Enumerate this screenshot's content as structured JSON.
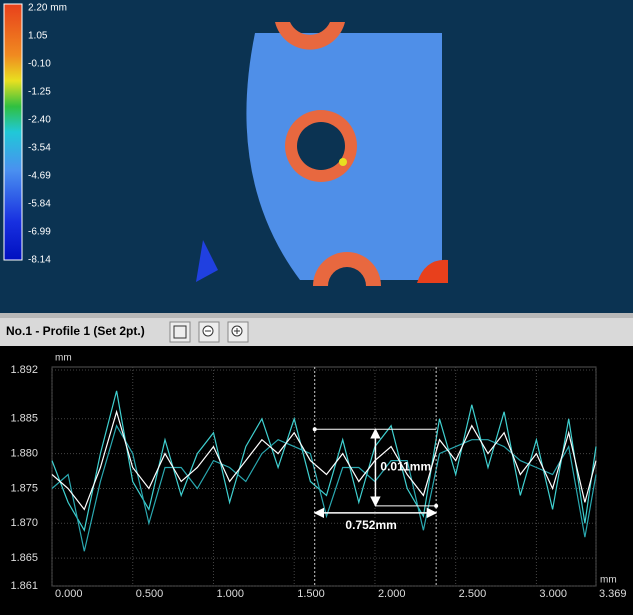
{
  "colorbar": {
    "labels": [
      "2.20 mm",
      "1.05",
      "-0.10",
      "-1.25",
      "-2.40",
      "-3.54",
      "-4.69",
      "-5.84",
      "-6.99",
      "-8.14"
    ]
  },
  "panel": {
    "title": "No.1 - Profile 1 (Set 2pt.)"
  },
  "chart_data": {
    "type": "line",
    "y_unit": "mm",
    "x_unit": "mm",
    "x": [
      0,
      0.1,
      0.2,
      0.3,
      0.4,
      0.5,
      0.6,
      0.7,
      0.8,
      0.9,
      1.0,
      1.1,
      1.2,
      1.3,
      1.4,
      1.5,
      1.6,
      1.7,
      1.8,
      1.9,
      2.0,
      2.1,
      2.2,
      2.3,
      2.4,
      2.5,
      2.6,
      2.7,
      2.8,
      2.9,
      3.0,
      3.1,
      3.2,
      3.3,
      3.369
    ],
    "series": [
      {
        "color": "#3fd0d0",
        "values": [
          1.879,
          1.873,
          1.869,
          1.88,
          1.889,
          1.876,
          1.872,
          1.882,
          1.874,
          1.88,
          1.883,
          1.873,
          1.881,
          1.885,
          1.878,
          1.885,
          1.876,
          1.874,
          1.882,
          1.873,
          1.881,
          1.884,
          1.875,
          1.871,
          1.885,
          1.877,
          1.887,
          1.878,
          1.886,
          1.874,
          1.882,
          1.872,
          1.885,
          1.87,
          1.881
        ]
      },
      {
        "color": "#2aa8b0",
        "values": [
          1.875,
          1.877,
          1.866,
          1.876,
          1.884,
          1.88,
          1.87,
          1.878,
          1.878,
          1.875,
          1.879,
          1.878,
          1.876,
          1.88,
          1.882,
          1.881,
          1.88,
          1.871,
          1.878,
          1.878,
          1.876,
          1.879,
          1.879,
          1.869,
          1.88,
          1.881,
          1.882,
          1.882,
          1.881,
          1.879,
          1.878,
          1.877,
          1.881,
          1.868,
          1.877
        ]
      },
      {
        "color": "#ffffff",
        "values": [
          1.877,
          1.875,
          1.872,
          1.878,
          1.886,
          1.878,
          1.875,
          1.88,
          1.876,
          1.878,
          1.881,
          1.876,
          1.879,
          1.882,
          1.88,
          1.883,
          1.879,
          1.877,
          1.88,
          1.876,
          1.879,
          1.881,
          1.877,
          1.874,
          1.882,
          1.879,
          1.884,
          1.88,
          1.883,
          1.877,
          1.88,
          1.875,
          1.883,
          1.873,
          1.879
        ]
      }
    ],
    "xlim": [
      0,
      3.369
    ],
    "xticks": [
      {
        "value": 0,
        "label": "0.000"
      },
      {
        "value": 0.5,
        "label": "0.500"
      },
      {
        "value": 1,
        "label": "1.000"
      },
      {
        "value": 1.5,
        "label": "1.500"
      },
      {
        "value": 2,
        "label": "2.000"
      },
      {
        "value": 2.5,
        "label": "2.500"
      },
      {
        "value": 3,
        "label": "3.000"
      },
      3.369
    ],
    "ylim": [
      1.861,
      1.892
    ],
    "yticks": [
      1.861,
      1.865,
      {
        "value": 1.87,
        "label": "1.870"
      },
      1.875,
      {
        "value": 1.88,
        "label": "1.880"
      },
      1.885,
      1.892
    ],
    "grid": true,
    "cursors": {
      "x": [
        1.627,
        2.379
      ],
      "y": [
        1.8835,
        1.8725
      ]
    },
    "annotations": [
      "0.011mm",
      "0.752mm"
    ]
  }
}
